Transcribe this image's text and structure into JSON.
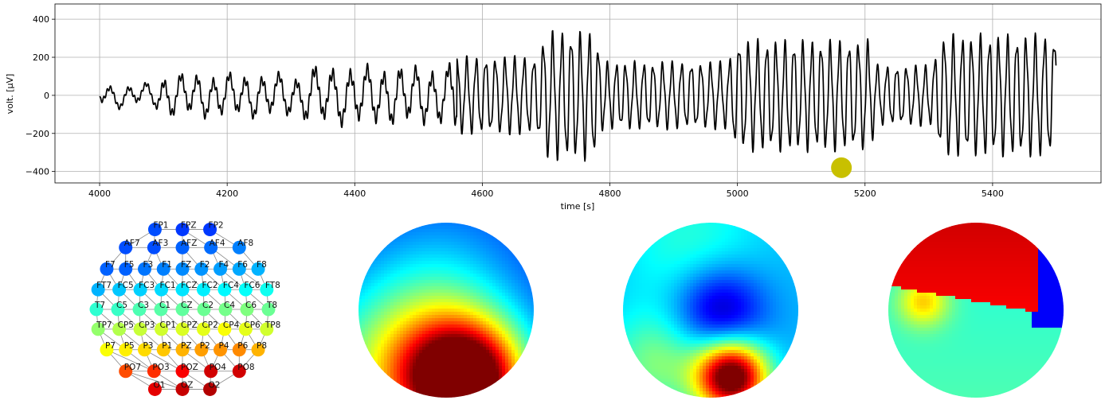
{
  "chart_data": [
    {
      "type": "line",
      "xlabel": "time [s]",
      "ylabel": "volt. [μV]",
      "xlim": [
        3930,
        5570
      ],
      "ylim": [
        -460,
        480
      ],
      "xticks": [
        4000,
        4200,
        4400,
        4600,
        4800,
        5000,
        5200,
        5400
      ],
      "yticks": [
        -400,
        -200,
        0,
        200,
        400
      ],
      "grid": true,
      "line_color": "#000000",
      "marker": {
        "x": 5163,
        "y": -380,
        "color": "#c8c000"
      },
      "x_range": [
        4000,
        5500
      ],
      "segments": [
        {
          "x_start": 4000,
          "x_end": 4100,
          "amplitude": 55,
          "offset": 0
        },
        {
          "x_start": 4100,
          "x_end": 4330,
          "amplitude": 110,
          "offset": 0
        },
        {
          "x_start": 4330,
          "x_end": 4560,
          "amplitude": 150,
          "offset": 0
        },
        {
          "x_start": 4560,
          "x_end": 4700,
          "amplitude": 230,
          "offset": 0
        },
        {
          "x_start": 4700,
          "x_end": 4790,
          "amplitude": 380,
          "offset": 0
        },
        {
          "x_start": 4790,
          "x_end": 5000,
          "amplitude": 200,
          "offset": 0
        },
        {
          "x_start": 5000,
          "x_end": 5220,
          "amplitude": 330,
          "offset": 0
        },
        {
          "x_start": 5220,
          "x_end": 5320,
          "amplitude": 180,
          "offset": 0
        },
        {
          "x_start": 5320,
          "x_end": 5500,
          "amplitude": 360,
          "offset": 0
        }
      ]
    },
    {
      "type": "scatter",
      "description_free": true,
      "electrodes": [
        {
          "label": "FPZ",
          "c": 0.18
        },
        {
          "label": "FP1",
          "c": 0.2
        },
        {
          "label": "FP2",
          "c": 0.18
        },
        {
          "label": "AF7",
          "c": 0.2
        },
        {
          "label": "AF3",
          "c": 0.2
        },
        {
          "label": "AFZ",
          "c": 0.22
        },
        {
          "label": "AF4",
          "c": 0.23
        },
        {
          "label": "AF8",
          "c": 0.25
        },
        {
          "label": "F7",
          "c": 0.22
        },
        {
          "label": "F5",
          "c": 0.22
        },
        {
          "label": "F3",
          "c": 0.24
        },
        {
          "label": "F1",
          "c": 0.25
        },
        {
          "label": "FZ",
          "c": 0.26
        },
        {
          "label": "F2",
          "c": 0.27
        },
        {
          "label": "F4",
          "c": 0.28
        },
        {
          "label": "F6",
          "c": 0.29
        },
        {
          "label": "F8",
          "c": 0.3
        },
        {
          "label": "FT7",
          "c": 0.3
        },
        {
          "label": "FC5",
          "c": 0.32
        },
        {
          "label": "FC3",
          "c": 0.33
        },
        {
          "label": "FC1",
          "c": 0.34
        },
        {
          "label": "FCZ",
          "c": 0.35
        },
        {
          "label": "FC2",
          "c": 0.36
        },
        {
          "label": "FC4",
          "c": 0.37
        },
        {
          "label": "FC6",
          "c": 0.38
        },
        {
          "label": "FT8",
          "c": 0.39
        },
        {
          "label": "T7",
          "c": 0.42
        },
        {
          "label": "C5",
          "c": 0.43
        },
        {
          "label": "C3",
          "c": 0.45
        },
        {
          "label": "C1",
          "c": 0.46
        },
        {
          "label": "CZ",
          "c": 0.47
        },
        {
          "label": "C2",
          "c": 0.48
        },
        {
          "label": "C4",
          "c": 0.49
        },
        {
          "label": "C6",
          "c": 0.5
        },
        {
          "label": "T8",
          "c": 0.48
        },
        {
          "label": "TP7",
          "c": 0.52
        },
        {
          "label": "CP5",
          "c": 0.55
        },
        {
          "label": "CP3",
          "c": 0.57
        },
        {
          "label": "CP1",
          "c": 0.58
        },
        {
          "label": "CPZ",
          "c": 0.59
        },
        {
          "label": "CP2",
          "c": 0.6
        },
        {
          "label": "CP4",
          "c": 0.62
        },
        {
          "label": "CP6",
          "c": 0.6
        },
        {
          "label": "TP8",
          "c": 0.58
        },
        {
          "label": "P7",
          "c": 0.62
        },
        {
          "label": "P5",
          "c": 0.64
        },
        {
          "label": "P3",
          "c": 0.66
        },
        {
          "label": "P1",
          "c": 0.68
        },
        {
          "label": "PZ",
          "c": 0.7
        },
        {
          "label": "P2",
          "c": 0.72
        },
        {
          "label": "P4",
          "c": 0.73
        },
        {
          "label": "P6",
          "c": 0.74
        },
        {
          "label": "P8",
          "c": 0.7
        },
        {
          "label": "PO7",
          "c": 0.8
        },
        {
          "label": "PO3",
          "c": 0.83
        },
        {
          "label": "POZ",
          "c": 0.88
        },
        {
          "label": "PO4",
          "c": 0.92
        },
        {
          "label": "PO8",
          "c": 0.92
        },
        {
          "label": "O1",
          "c": 0.9
        },
        {
          "label": "OZ",
          "c": 0.93
        },
        {
          "label": "O2",
          "c": 0.95
        }
      ]
    },
    {
      "type": "heatmap",
      "colormap": "jet",
      "maps": [
        {
          "base": 0.18,
          "blobs": [
            {
              "ux": 0.62,
              "uy": 0.9,
              "s": 0.23,
              "a": 0.85
            },
            {
              "ux": 0.3,
              "uy": 0.85,
              "s": 0.35,
              "a": 0.45
            },
            {
              "ux": 0.5,
              "uy": 0.35,
              "s": 0.3,
              "a": 0.1
            }
          ]
        },
        {
          "base": 0.3,
          "blobs": [
            {
              "ux": 0.55,
              "uy": 0.5,
              "s": 0.18,
              "a": -0.28
            },
            {
              "ux": 0.62,
              "uy": 0.88,
              "s": 0.14,
              "a": 0.8
            },
            {
              "ux": 0.4,
              "uy": 0.15,
              "s": 0.28,
              "a": 0.12
            },
            {
              "ux": 0.2,
              "uy": 0.8,
              "s": 0.2,
              "a": 0.2
            }
          ]
        },
        {
          "base": 0.3,
          "blobs": [
            {
              "ux": 0.45,
              "uy": 0.15,
              "s": 0.35,
              "a": 0.7
            },
            {
              "ux": 0.2,
              "uy": 0.45,
              "s": 0.25,
              "a": 0.55
            },
            {
              "ux": 0.92,
              "uy": 0.45,
              "s": 0.14,
              "a": -0.35
            },
            {
              "ux": 0.5,
              "uy": 0.85,
              "s": 0.3,
              "a": 0.05
            }
          ]
        }
      ]
    }
  ]
}
